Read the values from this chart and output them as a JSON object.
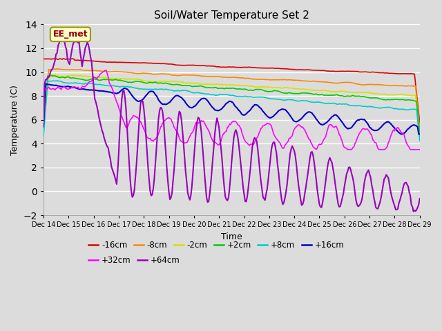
{
  "title": "Soil/Water Temperature Set 2",
  "xlabel": "Time",
  "ylabel": "Temperature (C)",
  "ylim": [
    -2,
    14
  ],
  "xlim": [
    0,
    360
  ],
  "background_color": "#dcdcdc",
  "plot_bg_color": "#dcdcdc",
  "grid_color": "#ffffff",
  "annotation_text": "EE_met",
  "annotation_box_color": "#ffffcc",
  "annotation_box_edge": "#999900",
  "series": [
    {
      "label": "-16cm",
      "color": "#dd0000",
      "linewidth": 1.2
    },
    {
      "label": "-8cm",
      "color": "#ff8800",
      "linewidth": 1.2
    },
    {
      "label": "-2cm",
      "color": "#dddd00",
      "linewidth": 1.2
    },
    {
      "label": "+2cm",
      "color": "#00cc00",
      "linewidth": 1.2
    },
    {
      "label": "+8cm",
      "color": "#00cccc",
      "linewidth": 1.2
    },
    {
      "label": "+16cm",
      "color": "#0000cc",
      "linewidth": 1.5
    },
    {
      "label": "+32cm",
      "color": "#ff00ff",
      "linewidth": 1.2
    },
    {
      "label": "+64cm",
      "color": "#9900bb",
      "linewidth": 1.5
    }
  ],
  "tick_labels": [
    "Dec 14",
    "Dec 15",
    "Dec 16",
    "Dec 17",
    "Dec 18",
    "Dec 19",
    "Dec 20",
    "Dec 21",
    "Dec 22",
    "Dec 23",
    "Dec 24",
    "Dec 25",
    "Dec 26",
    "Dec 27",
    "Dec 28",
    "Dec 29"
  ],
  "tick_positions": [
    0,
    24,
    48,
    72,
    96,
    120,
    144,
    168,
    192,
    216,
    240,
    264,
    288,
    312,
    336,
    360
  ],
  "yticks": [
    -2,
    0,
    2,
    4,
    6,
    8,
    10,
    12,
    14
  ]
}
